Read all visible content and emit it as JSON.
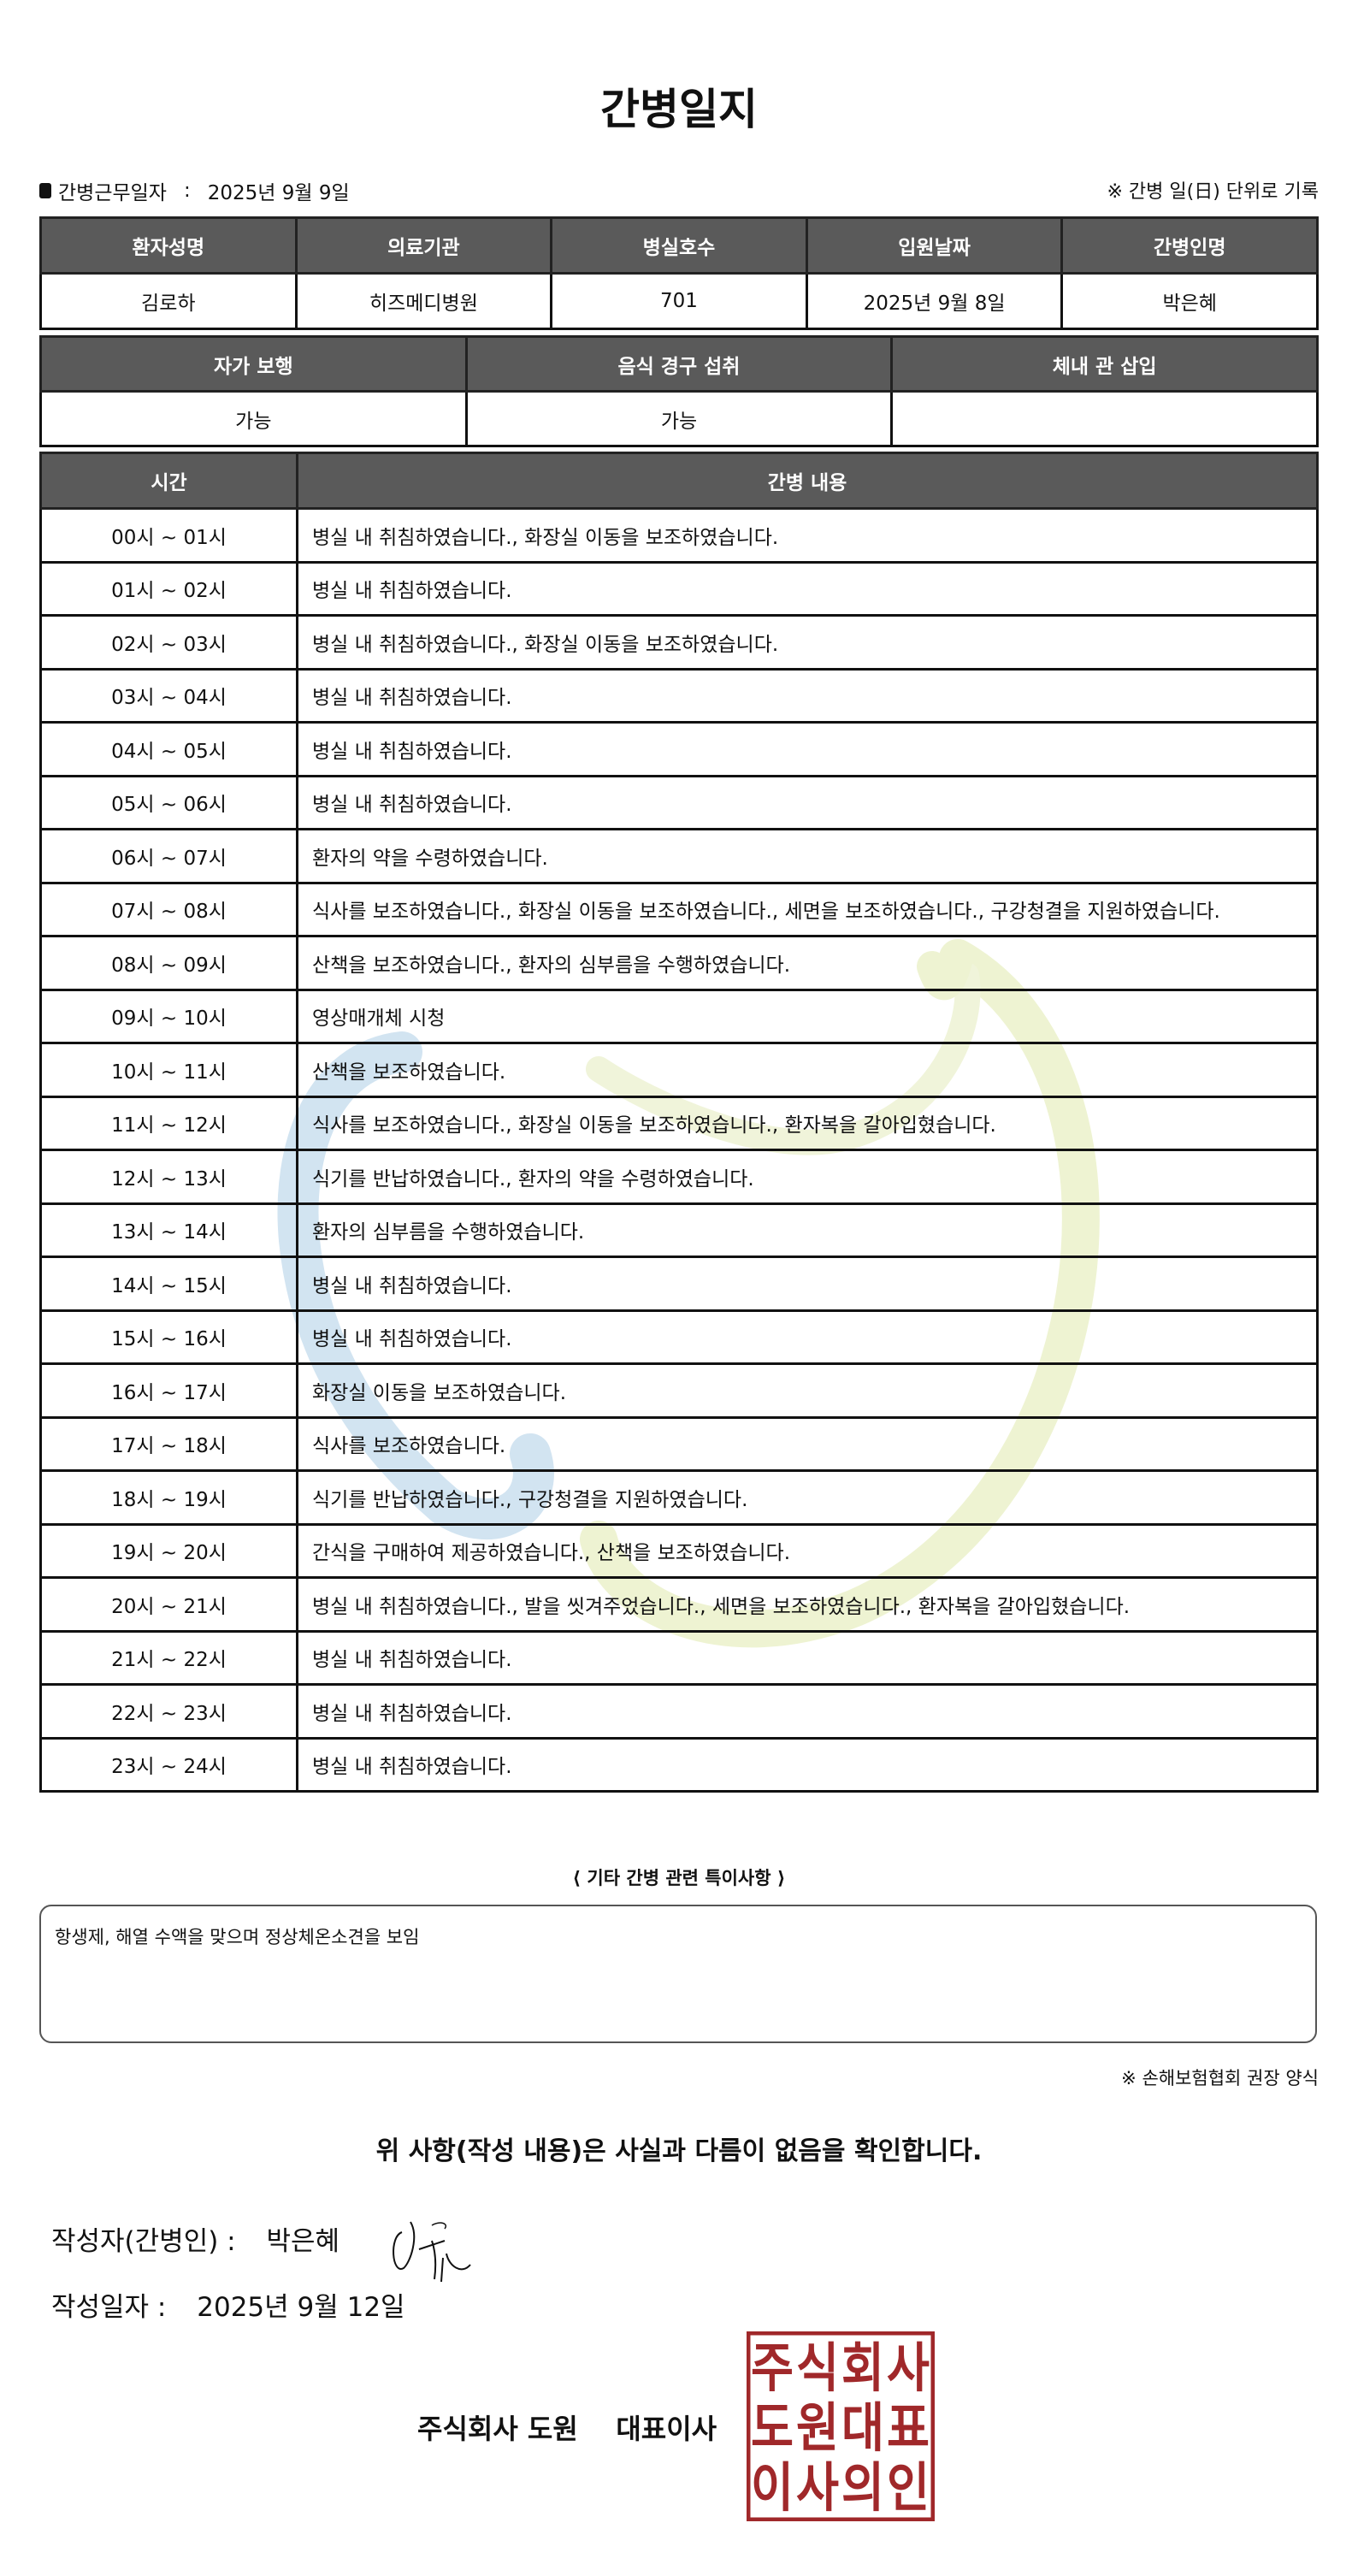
{
  "title": "간병일지",
  "work_date_label": "간병근무일자",
  "work_date_sep": ":",
  "work_date": "2025년 9월 9일",
  "unit_note": "※ 간병 일(日) 단위로 기록",
  "patient_table": {
    "headers": [
      "환자성명",
      "의료기관",
      "병실호수",
      "입원날짜",
      "간병인명"
    ],
    "values": [
      "김로하",
      "히즈메디병원",
      "701",
      "2025년 9월 8일",
      "박은혜"
    ]
  },
  "status_table": {
    "headers": [
      "자가 보행",
      "음식 경구 섭취",
      "체내 관 삽입"
    ],
    "values": [
      "가능",
      "가능",
      ""
    ]
  },
  "log_table": {
    "headers": [
      "시간",
      "간병 내용"
    ],
    "rows": [
      {
        "time": "00시 ~ 01시",
        "content": "병실 내 취침하였습니다., 화장실 이동을 보조하였습니다."
      },
      {
        "time": "01시 ~ 02시",
        "content": "병실 내 취침하였습니다."
      },
      {
        "time": "02시 ~ 03시",
        "content": "병실 내 취침하였습니다., 화장실 이동을 보조하였습니다."
      },
      {
        "time": "03시 ~ 04시",
        "content": "병실 내 취침하였습니다."
      },
      {
        "time": "04시 ~ 05시",
        "content": "병실 내 취침하였습니다."
      },
      {
        "time": "05시 ~ 06시",
        "content": "병실 내 취침하였습니다."
      },
      {
        "time": "06시 ~ 07시",
        "content": "환자의 약을 수령하였습니다."
      },
      {
        "time": "07시 ~ 08시",
        "content": "식사를 보조하였습니다., 화장실 이동을 보조하였습니다., 세면을 보조하였습니다., 구강청결을 지원하였습니다."
      },
      {
        "time": "08시 ~ 09시",
        "content": "산책을 보조하였습니다., 환자의 심부름을 수행하였습니다."
      },
      {
        "time": "09시 ~ 10시",
        "content": "영상매개체 시청"
      },
      {
        "time": "10시 ~ 11시",
        "content": "산책을 보조하였습니다."
      },
      {
        "time": "11시 ~ 12시",
        "content": "식사를 보조하였습니다., 화장실 이동을 보조하였습니다., 환자복을 갈아입혔습니다."
      },
      {
        "time": "12시 ~ 13시",
        "content": "식기를 반납하였습니다., 환자의 약을 수령하였습니다."
      },
      {
        "time": "13시 ~ 14시",
        "content": "환자의 심부름을 수행하였습니다."
      },
      {
        "time": "14시 ~ 15시",
        "content": "병실 내 취침하였습니다."
      },
      {
        "time": "15시 ~ 16시",
        "content": "병실 내 취침하였습니다."
      },
      {
        "time": "16시 ~ 17시",
        "content": "화장실 이동을 보조하였습니다."
      },
      {
        "time": "17시 ~ 18시",
        "content": "식사를 보조하였습니다."
      },
      {
        "time": "18시 ~ 19시",
        "content": "식기를 반납하였습니다., 구강청결을 지원하였습니다."
      },
      {
        "time": "19시 ~ 20시",
        "content": "간식을 구매하여 제공하였습니다., 산책을 보조하였습니다."
      },
      {
        "time": "20시 ~ 21시",
        "content": "병실 내 취침하였습니다., 발을 씻겨주었습니다., 세면을 보조하였습니다., 환자복을 갈아입혔습니다."
      },
      {
        "time": "21시 ~ 22시",
        "content": "병실 내 취침하였습니다."
      },
      {
        "time": "22시 ~ 23시",
        "content": "병실 내 취침하였습니다."
      },
      {
        "time": "23시 ~ 24시",
        "content": "병실 내 취침하였습니다."
      }
    ]
  },
  "special_notes_title": "⟨ 기타 간병 관련 특이사항 ⟩",
  "special_notes": "항생제,  해열 수액을 맞으며 정상체온소견을 보임",
  "form_note": "※ 손해보험협회 권장 양식",
  "confirm_text": "위 사항(작성 내용)은 사실과 다름이 없음을 확인합니다.",
  "writer_label": "작성자(간병인) :",
  "writer_name": "박은혜",
  "written_date_label": "작성일자 :",
  "written_date": "2025년 9월 12일",
  "company": "주식회사 도원    대표이사",
  "stamp_text": "주식회사도원대표이사의인",
  "colors": {
    "header_bg": "#5a5a5a",
    "stamp": "#a0282a",
    "watermark_blue": "#cfe2f0",
    "watermark_green": "#eef3d2"
  }
}
